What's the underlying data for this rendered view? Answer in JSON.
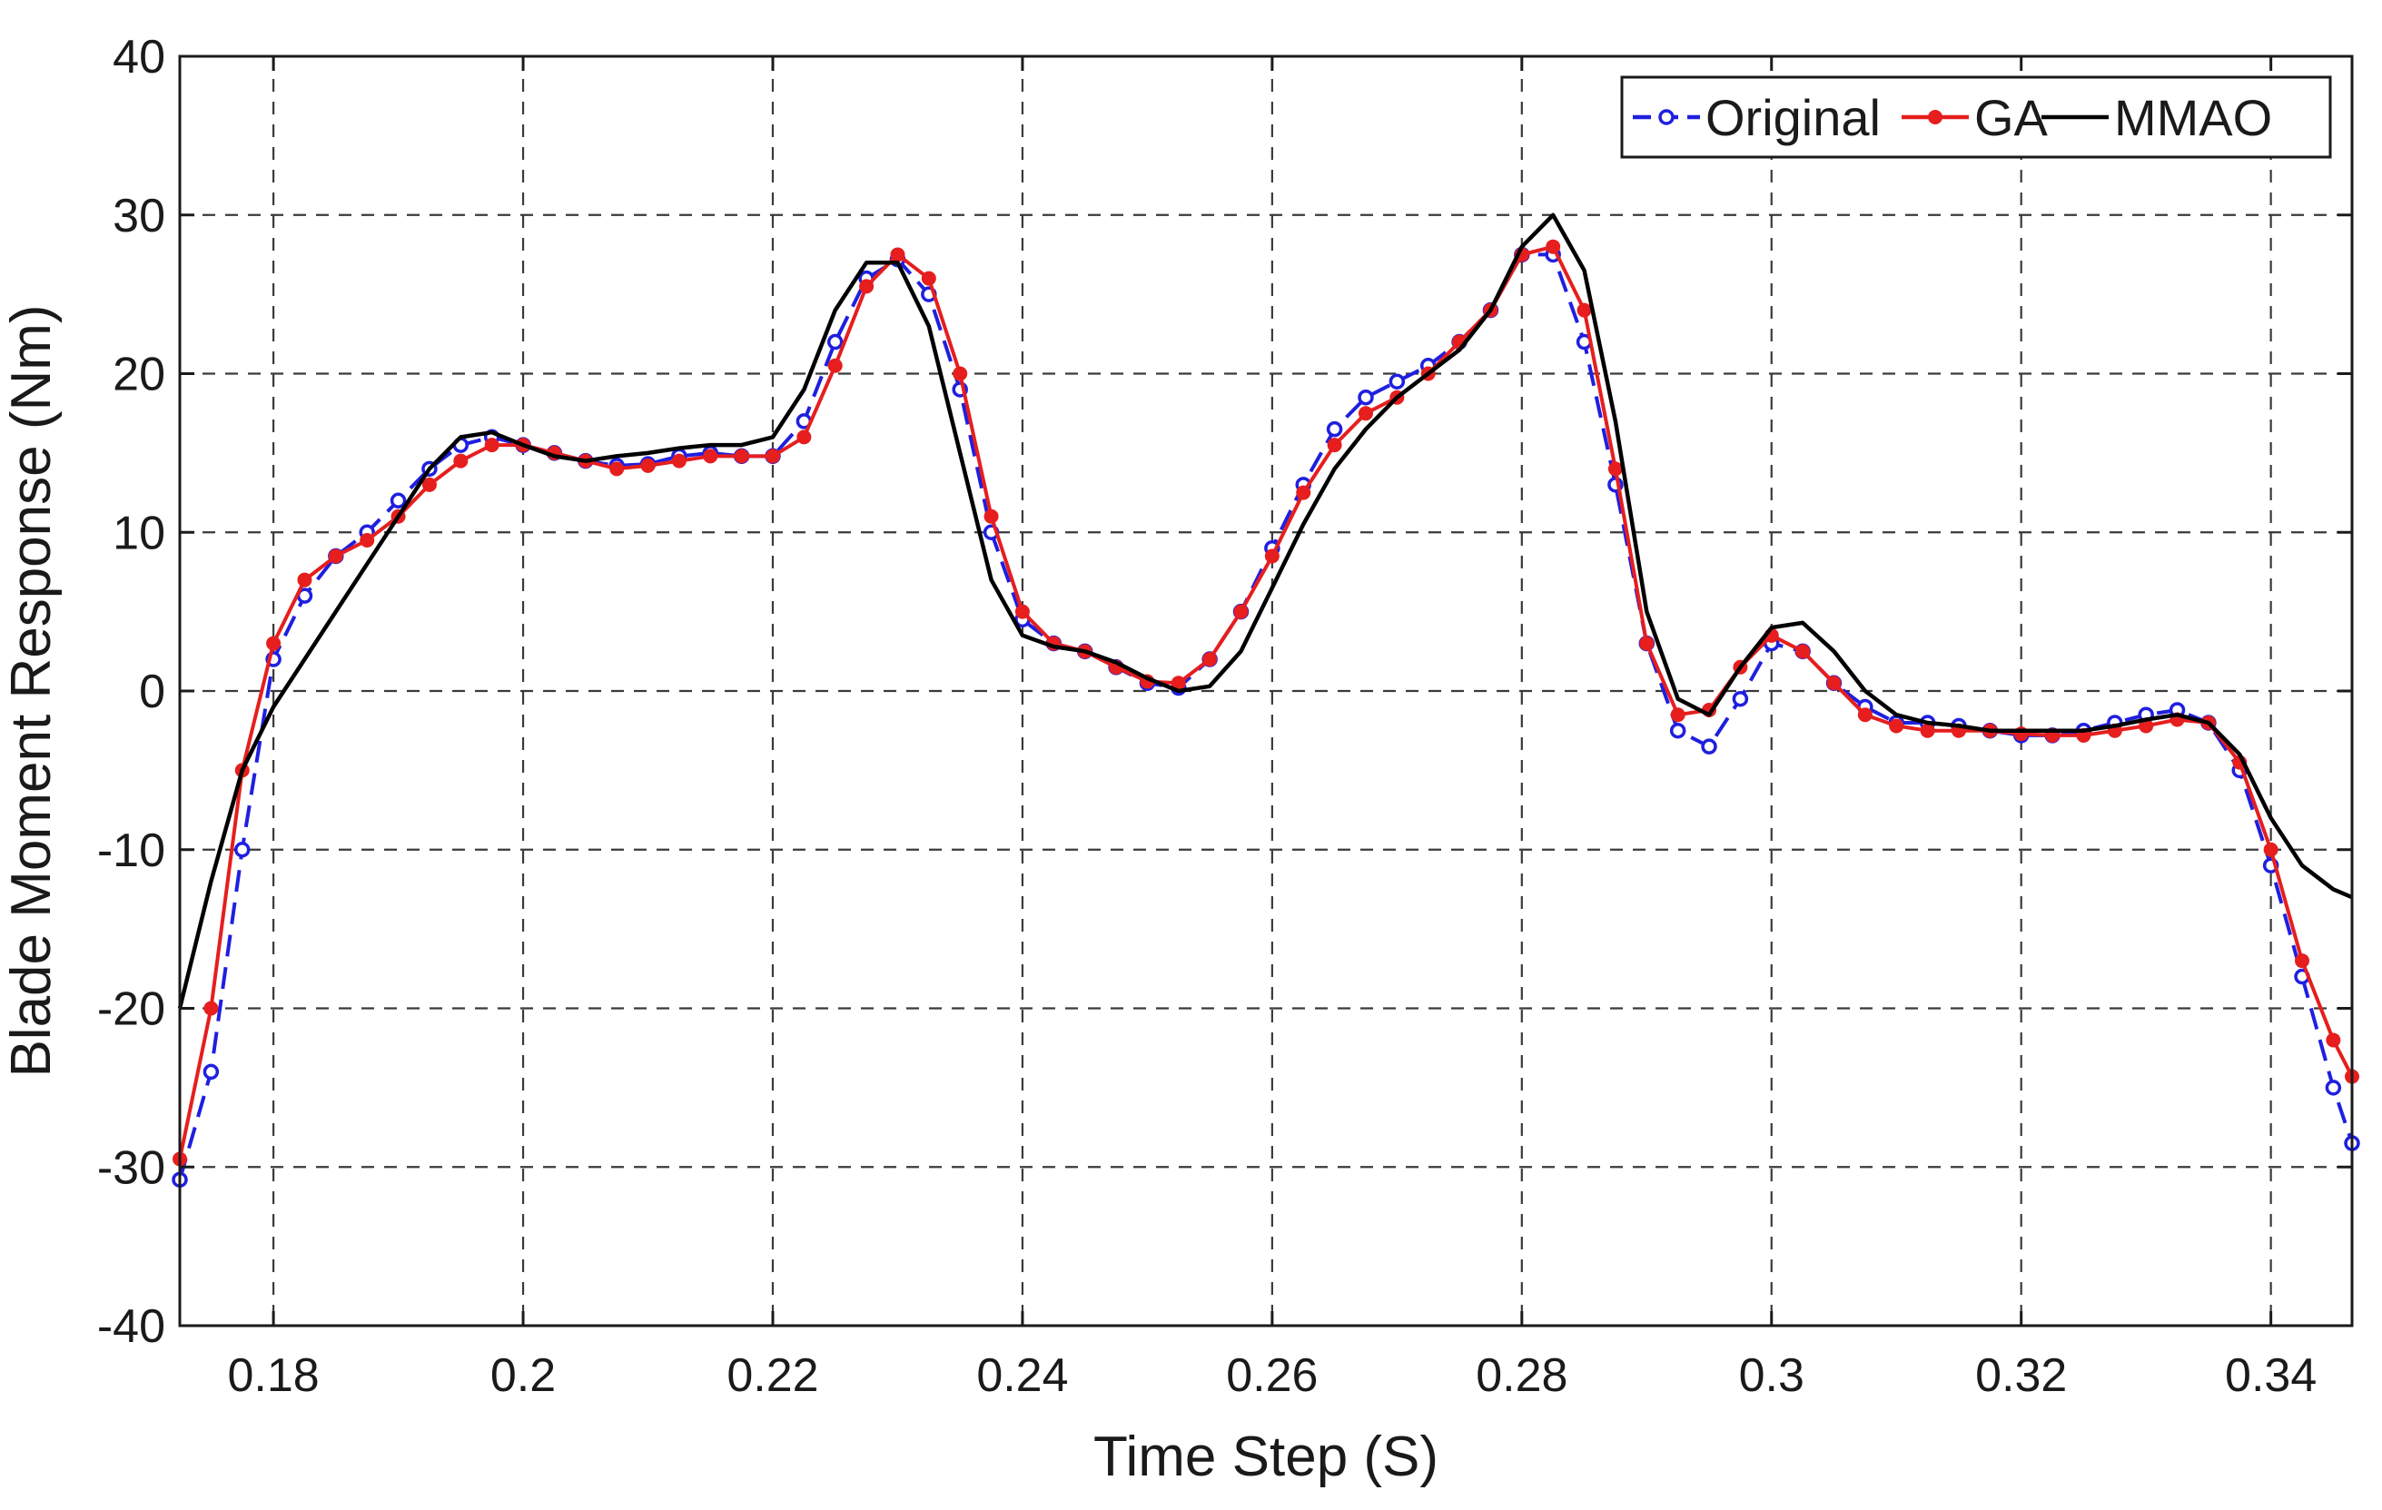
{
  "chart_data": {
    "type": "line",
    "title": "",
    "xlabel": "Time Step (S)",
    "ylabel": "Blade Moment Response (Nm)",
    "xlim": [
      0.1725,
      0.3465
    ],
    "ylim": [
      -40,
      40
    ],
    "xticks": [
      0.18,
      0.2,
      0.22,
      0.24,
      0.26,
      0.28,
      0.3,
      0.32,
      0.34
    ],
    "xtick_labels": [
      "0.18",
      "0.2",
      "0.22",
      "0.24",
      "0.26",
      "0.28",
      "0.3",
      "0.32",
      "0.34"
    ],
    "yticks": [
      -40,
      -30,
      -20,
      -10,
      0,
      10,
      20,
      30,
      40
    ],
    "ytick_labels": [
      "-40",
      "-30",
      "-20",
      "-10",
      "0",
      "10",
      "20",
      "30",
      "40"
    ],
    "grid": true,
    "grid_style": "dashed",
    "legend_position": "top-right",
    "series": [
      {
        "name": "Original",
        "color": "#1f1fe0",
        "line_style": "dashed",
        "marker": "circle-open",
        "x": [
          0.1725,
          0.175,
          0.1775,
          0.18,
          0.1825,
          0.185,
          0.1875,
          0.19,
          0.1925,
          0.195,
          0.1975,
          0.2,
          0.2025,
          0.205,
          0.2075,
          0.21,
          0.2125,
          0.215,
          0.2175,
          0.22,
          0.2225,
          0.225,
          0.2275,
          0.23,
          0.2325,
          0.235,
          0.2375,
          0.24,
          0.2425,
          0.245,
          0.2475,
          0.25,
          0.2525,
          0.255,
          0.2575,
          0.26,
          0.2625,
          0.265,
          0.2675,
          0.27,
          0.2725,
          0.275,
          0.2775,
          0.28,
          0.2825,
          0.285,
          0.2875,
          0.29,
          0.2925,
          0.295,
          0.2975,
          0.3,
          0.3025,
          0.305,
          0.3075,
          0.31,
          0.3125,
          0.315,
          0.3175,
          0.32,
          0.3225,
          0.325,
          0.3275,
          0.33,
          0.3325,
          0.335,
          0.3375,
          0.34,
          0.3425,
          0.345,
          0.3465
        ],
        "values": [
          -30.8,
          -24,
          -10,
          2,
          6,
          8.5,
          10,
          12,
          14,
          15.5,
          16,
          15.5,
          15,
          14.5,
          14.2,
          14.3,
          14.8,
          15,
          14.8,
          14.8,
          17,
          22,
          26,
          27.2,
          25,
          19,
          10,
          4.5,
          3,
          2.5,
          1.5,
          0.5,
          0.2,
          2,
          5,
          9,
          13,
          16.5,
          18.5,
          19.5,
          20.5,
          22,
          24,
          27.5,
          27.5,
          22,
          13,
          3,
          -2.5,
          -3.5,
          -0.5,
          3,
          2.5,
          0.5,
          -1,
          -2,
          -2,
          -2.2,
          -2.5,
          -2.8,
          -2.8,
          -2.5,
          -2,
          -1.5,
          -1.2,
          -2,
          -5,
          -11,
          -18,
          -25,
          -28.5
        ]
      },
      {
        "name": "GA",
        "color": "#e61e1e",
        "line_style": "solid",
        "marker": "filled-dot",
        "x": [
          0.1725,
          0.175,
          0.1775,
          0.18,
          0.1825,
          0.185,
          0.1875,
          0.19,
          0.1925,
          0.195,
          0.1975,
          0.2,
          0.2025,
          0.205,
          0.2075,
          0.21,
          0.2125,
          0.215,
          0.2175,
          0.22,
          0.2225,
          0.225,
          0.2275,
          0.23,
          0.2325,
          0.235,
          0.2375,
          0.24,
          0.2425,
          0.245,
          0.2475,
          0.25,
          0.2525,
          0.255,
          0.2575,
          0.26,
          0.2625,
          0.265,
          0.2675,
          0.27,
          0.2725,
          0.275,
          0.2775,
          0.28,
          0.2825,
          0.285,
          0.2875,
          0.29,
          0.2925,
          0.295,
          0.2975,
          0.3,
          0.3025,
          0.305,
          0.3075,
          0.31,
          0.3125,
          0.315,
          0.3175,
          0.32,
          0.3225,
          0.325,
          0.3275,
          0.33,
          0.3325,
          0.335,
          0.3375,
          0.34,
          0.3425,
          0.345,
          0.3465
        ],
        "values": [
          -29.5,
          -20,
          -5,
          3,
          7,
          8.5,
          9.5,
          11,
          13,
          14.5,
          15.5,
          15.5,
          15,
          14.5,
          14,
          14.2,
          14.5,
          14.8,
          14.8,
          14.8,
          16,
          20.5,
          25.5,
          27.5,
          26,
          20,
          11,
          5,
          3,
          2.5,
          1.5,
          0.6,
          0.5,
          2,
          5,
          8.5,
          12.5,
          15.5,
          17.5,
          18.5,
          20,
          22,
          24,
          27.5,
          28,
          24,
          14,
          3,
          -1.5,
          -1.2,
          1.5,
          3.5,
          2.5,
          0.5,
          -1.5,
          -2.2,
          -2.5,
          -2.5,
          -2.5,
          -2.7,
          -2.8,
          -2.8,
          -2.5,
          -2.2,
          -1.8,
          -2,
          -4.5,
          -10,
          -17,
          -22,
          -24.3
        ]
      },
      {
        "name": "MMAO",
        "color": "#000000",
        "line_style": "solid",
        "marker": "none",
        "x": [
          0.1725,
          0.175,
          0.1775,
          0.18,
          0.1825,
          0.185,
          0.1875,
          0.19,
          0.1925,
          0.195,
          0.1975,
          0.2,
          0.2025,
          0.205,
          0.2075,
          0.21,
          0.2125,
          0.215,
          0.2175,
          0.22,
          0.2225,
          0.225,
          0.2275,
          0.23,
          0.2325,
          0.235,
          0.2375,
          0.24,
          0.2425,
          0.245,
          0.2475,
          0.25,
          0.2525,
          0.255,
          0.2575,
          0.26,
          0.2625,
          0.265,
          0.2675,
          0.27,
          0.2725,
          0.275,
          0.2775,
          0.28,
          0.2825,
          0.285,
          0.2875,
          0.29,
          0.2925,
          0.295,
          0.2975,
          0.3,
          0.3025,
          0.305,
          0.3075,
          0.31,
          0.3125,
          0.315,
          0.3175,
          0.32,
          0.3225,
          0.325,
          0.3275,
          0.33,
          0.3325,
          0.335,
          0.3375,
          0.34,
          0.3425,
          0.345,
          0.3465
        ],
        "values": [
          -20,
          -12,
          -5,
          -1,
          2,
          5,
          8,
          11,
          14,
          16,
          16.3,
          15.5,
          14.8,
          14.5,
          14.8,
          15,
          15.3,
          15.5,
          15.5,
          16,
          19,
          24,
          27,
          27,
          23,
          15,
          7,
          3.5,
          2.8,
          2.5,
          1.8,
          0.8,
          0,
          0.3,
          2.5,
          6.5,
          10.5,
          14,
          16.5,
          18.5,
          20,
          21.5,
          24,
          28,
          30,
          26.5,
          17,
          5,
          -0.5,
          -1.5,
          1.5,
          4,
          4.3,
          2.5,
          0,
          -1.5,
          -2,
          -2.2,
          -2.5,
          -2.5,
          -2.5,
          -2.5,
          -2.2,
          -1.8,
          -1.5,
          -2,
          -4,
          -8,
          -11,
          -12.5,
          -13
        ]
      }
    ]
  }
}
